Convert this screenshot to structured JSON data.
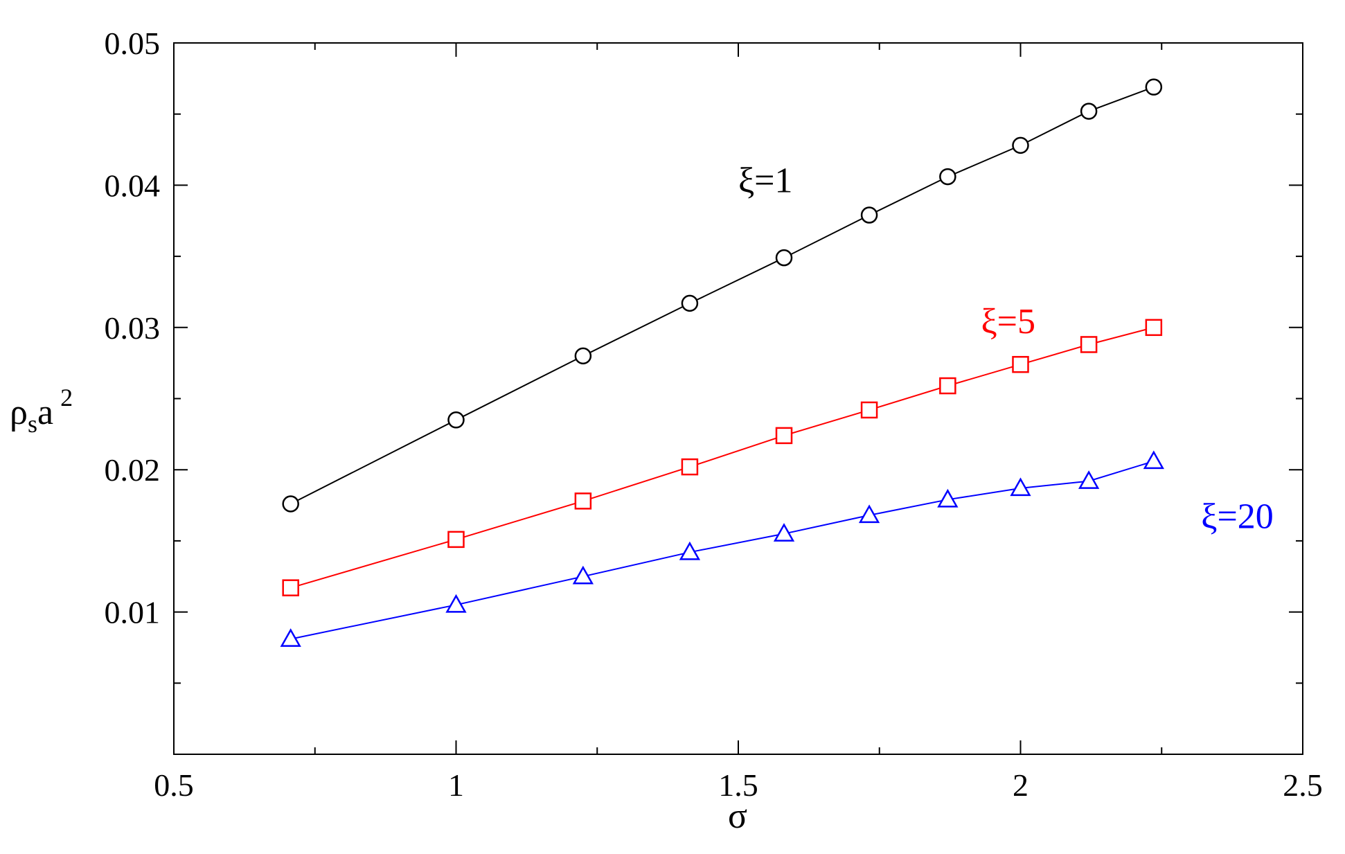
{
  "chart_data": {
    "type": "line",
    "title": "",
    "xlabel": "σ",
    "ylabel": {
      "base": "ρ",
      "sub": "s",
      "mid": "a",
      "sup": "2"
    },
    "xlim": [
      0.5,
      2.5
    ],
    "ylim": [
      0.0,
      0.05
    ],
    "x_major_ticks": [
      0.5,
      1,
      1.5,
      2,
      2.5
    ],
    "x_tick_labels": [
      "0.5",
      "1",
      "1.5",
      "2",
      "2.5"
    ],
    "x_minor_ticks": [
      0.75,
      1.25,
      1.75,
      2.25
    ],
    "y_major_ticks": [
      0.01,
      0.02,
      0.03,
      0.04,
      0.05
    ],
    "y_tick_labels": [
      "0.01",
      "0.02",
      "0.03",
      "0.04",
      "0.05"
    ],
    "y_minor_ticks": [
      0.005,
      0.015,
      0.025,
      0.035,
      0.045
    ],
    "grid": false,
    "legend": "inline labels",
    "x": [
      0.707,
      1.0,
      1.225,
      1.414,
      1.581,
      1.732,
      1.871,
      2.0,
      2.121,
      2.236
    ],
    "series": [
      {
        "name": "ξ=1",
        "color": "#000000",
        "marker": "circle",
        "values": [
          0.0176,
          0.0235,
          0.028,
          0.0317,
          0.0349,
          0.0379,
          0.0406,
          0.0428,
          0.0452,
          0.0469
        ],
        "label_anchor": [
          1.5,
          0.0395
        ]
      },
      {
        "name": "ξ=5",
        "color": "#ff0000",
        "marker": "square",
        "values": [
          0.0117,
          0.0151,
          0.0178,
          0.0202,
          0.0224,
          0.0242,
          0.0259,
          0.0274,
          0.0288,
          0.03
        ],
        "label_anchor": [
          1.93,
          0.0296
        ]
      },
      {
        "name": "ξ=20",
        "color": "#0000ff",
        "marker": "triangle",
        "values": [
          0.0081,
          0.0105,
          0.0125,
          0.0142,
          0.0155,
          0.0168,
          0.0179,
          0.0187,
          0.0192,
          0.0206
        ],
        "label_anchor": [
          2.32,
          0.0159
        ]
      }
    ]
  }
}
